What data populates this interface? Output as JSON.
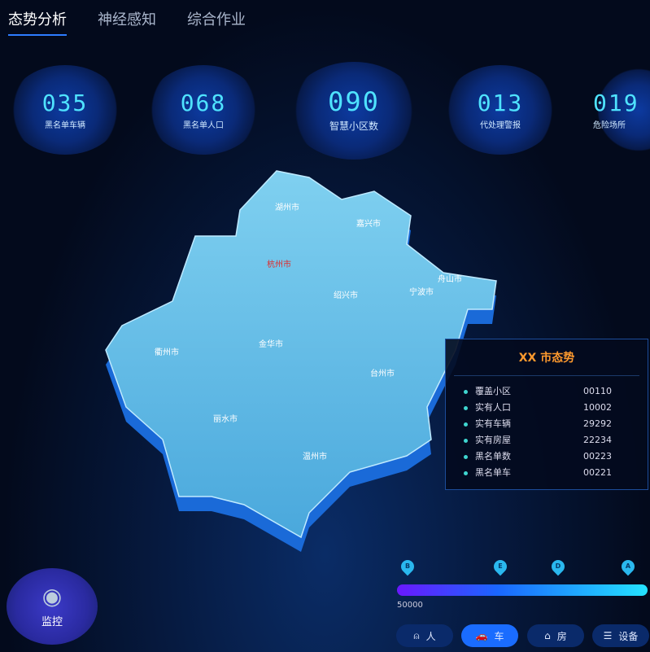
{
  "tabs": [
    {
      "label": "态势分析",
      "active": true
    },
    {
      "label": "神经感知"
    },
    {
      "label": "综合作业"
    }
  ],
  "stats": [
    {
      "value": "035",
      "label": "黑名单车辆"
    },
    {
      "value": "068",
      "label": "黑名单人口"
    },
    {
      "value": "090",
      "label": "智慧小区数"
    },
    {
      "value": "013",
      "label": "代处理警报"
    },
    {
      "value": "019",
      "label": "危险场所"
    }
  ],
  "map": {
    "cities": [
      "湖州市",
      "嘉兴市",
      "杭州市",
      "舟山市",
      "宁波市",
      "绍兴市",
      "衢州市",
      "金华市",
      "台州市",
      "丽水市",
      "温州市"
    ],
    "highlight": "杭州市",
    "highlight_color": "#e02a2a"
  },
  "panel": {
    "title": "XX 市态势",
    "rows": [
      {
        "label": "覆盖小区",
        "value": "00110"
      },
      {
        "label": "实有人口",
        "value": "10002"
      },
      {
        "label": "实有车辆",
        "value": "29292"
      },
      {
        "label": "实有房屋",
        "value": "22234"
      },
      {
        "label": "黑名单数",
        "value": "00223"
      },
      {
        "label": "黑名单车",
        "value": "00221"
      }
    ]
  },
  "timeline": {
    "markers": [
      "B",
      "E",
      "D",
      "A"
    ],
    "value": "50000"
  },
  "categories": [
    {
      "label": "人",
      "icon": "person-icon"
    },
    {
      "label": "车",
      "icon": "car-icon",
      "active": true
    },
    {
      "label": "房",
      "icon": "house-icon"
    },
    {
      "label": "设备",
      "icon": "device-icon"
    }
  ],
  "monitor": {
    "label": "监控",
    "icon": "eye-icon"
  }
}
